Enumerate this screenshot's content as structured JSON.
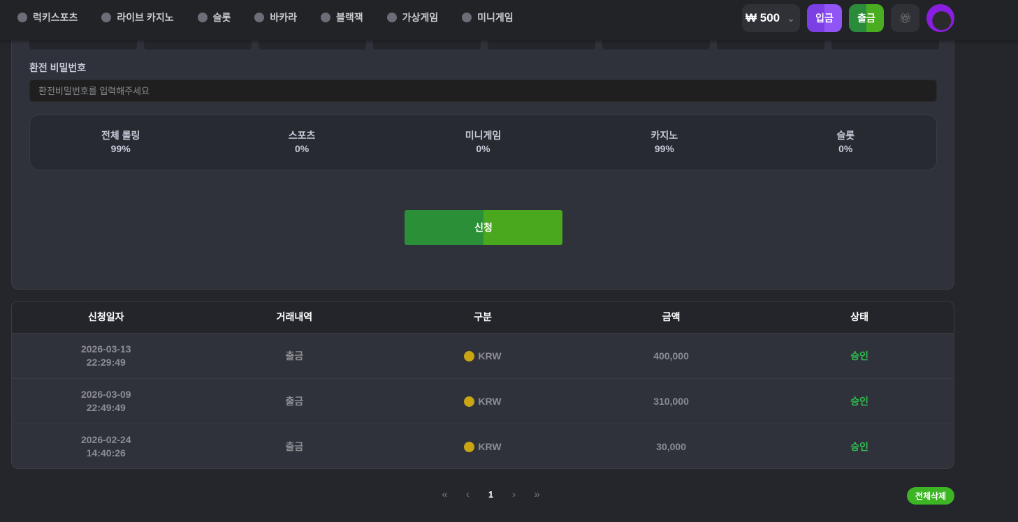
{
  "nav": [
    {
      "label": "럭키스포츠",
      "icon": "soccer-ball-icon"
    },
    {
      "label": "라이브 카지노",
      "icon": "cards-icon"
    },
    {
      "label": "슬롯",
      "icon": "slot-machine-icon"
    },
    {
      "label": "바카라",
      "icon": "spade-icon"
    },
    {
      "label": "블랙잭",
      "icon": "spade-icon"
    },
    {
      "label": "가상게임",
      "icon": "invader-icon"
    },
    {
      "label": "미니게임",
      "icon": "pin-icon"
    }
  ],
  "header": {
    "balance": "₩ 500",
    "deposit": "입금",
    "withdraw": "출금",
    "gift_icon": "gift-icon"
  },
  "form": {
    "password_label": "환전 비밀번호",
    "password_placeholder": "환전비밀번호를 입력해주세요",
    "submit": "신청"
  },
  "rolling": [
    {
      "label": "전체 롤링",
      "value": "99%"
    },
    {
      "label": "스포츠",
      "value": "0%"
    },
    {
      "label": "미니게임",
      "value": "0%"
    },
    {
      "label": "카지노",
      "value": "99%"
    },
    {
      "label": "슬롯",
      "value": "0%"
    }
  ],
  "table": {
    "headers": [
      "신청일자",
      "거래내역",
      "구분",
      "금액",
      "상태"
    ],
    "rows": [
      {
        "date": "2026-03-13",
        "time": "22:29:49",
        "type": "출금",
        "currency": "KRW",
        "amount": "400,000",
        "status": "승인"
      },
      {
        "date": "2026-03-09",
        "time": "22:49:49",
        "type": "출금",
        "currency": "KRW",
        "amount": "310,000",
        "status": "승인"
      },
      {
        "date": "2026-02-24",
        "time": "14:40:26",
        "type": "출금",
        "currency": "KRW",
        "amount": "30,000",
        "status": "승인"
      }
    ]
  },
  "pager": {
    "first": "«",
    "prev": "‹",
    "page": "1",
    "next": "›",
    "last": "»"
  },
  "delete_all": "전체삭제",
  "colors": {
    "accent_green": "#3cb424",
    "deposit_purple": "#7c3fe4",
    "status_ok": "#2fbf4f"
  }
}
